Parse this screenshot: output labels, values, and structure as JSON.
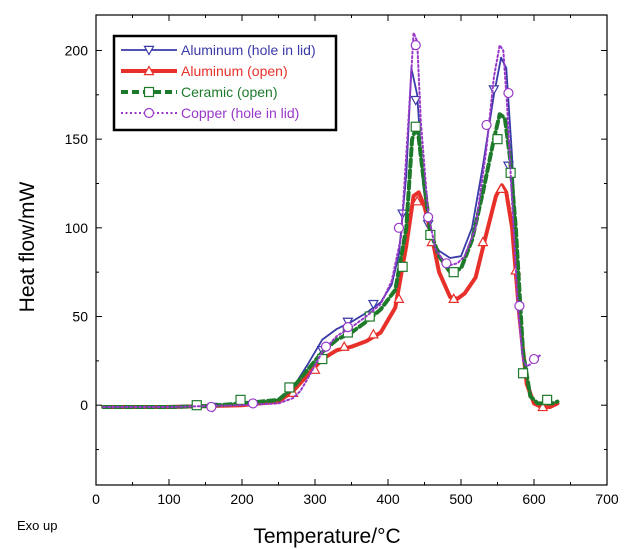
{
  "chart_data": {
    "type": "line",
    "title": "",
    "xlabel": "Temperature/°C",
    "ylabel": "Heat flow/mW",
    "corner_note": "Exo up",
    "xlim": [
      0,
      700
    ],
    "ylim": [
      -45,
      220
    ],
    "xticks": [
      0,
      100,
      200,
      300,
      400,
      500,
      600,
      700
    ],
    "yticks": [
      0,
      50,
      100,
      150,
      200
    ],
    "grid": false,
    "legend_position": "top-left",
    "series": [
      {
        "name": "Aluminum (hole in lid)",
        "color": "#3a3aa8",
        "marker": "triangle-down",
        "dash": "solid",
        "width": 1.8,
        "x": [
          10,
          100,
          150,
          200,
          250,
          270,
          290,
          310,
          330,
          350,
          370,
          390,
          405,
          415,
          425,
          432,
          440,
          448,
          458,
          470,
          485,
          500,
          515,
          530,
          545,
          555,
          562,
          570,
          580,
          590,
          600,
          610,
          622,
          632
        ],
        "y": [
          -1,
          -1,
          -0.5,
          0,
          3,
          10,
          23,
          37,
          43,
          47,
          52,
          58,
          68,
          85,
          130,
          190,
          175,
          125,
          95,
          87,
          83,
          84,
          100,
          135,
          175,
          196,
          190,
          140,
          55,
          15,
          2,
          -1,
          -1,
          1
        ],
        "marker_x": [
          160,
          310,
          345,
          380,
          420,
          438,
          455,
          545,
          565
        ],
        "marker_y": [
          -1,
          31,
          47,
          57,
          108,
          172,
          102,
          178,
          135
        ]
      },
      {
        "name": "Aluminum (open)",
        "color": "#e8302a",
        "marker": "triangle-up",
        "dash": "solid",
        "width": 4,
        "x": [
          10,
          100,
          150,
          200,
          250,
          270,
          290,
          310,
          330,
          350,
          370,
          390,
          410,
          425,
          435,
          442,
          450,
          460,
          470,
          485,
          495,
          505,
          520,
          535,
          548,
          556,
          562,
          570,
          580,
          590,
          600,
          610,
          622,
          632
        ],
        "y": [
          -1,
          -1,
          -0.5,
          0,
          2,
          8,
          17,
          26,
          31,
          33,
          36,
          41,
          55,
          90,
          118,
          120,
          112,
          95,
          75,
          61,
          60,
          63,
          72,
          97,
          118,
          124,
          120,
          100,
          50,
          12,
          1,
          -1,
          -1,
          1
        ],
        "marker_x": [
          270,
          300,
          340,
          380,
          415,
          440,
          460,
          490,
          530,
          555,
          575,
          612
        ],
        "marker_y": [
          7,
          20,
          33,
          40,
          60,
          115,
          92,
          60,
          92,
          122,
          76,
          -1
        ],
        "marker_fill": "#ffffff"
      },
      {
        "name": "Ceramic (open)",
        "color": "#1e7a2b",
        "marker": "square",
        "dash": "dashed",
        "width": 4,
        "x": [
          10,
          100,
          150,
          200,
          250,
          270,
          290,
          310,
          330,
          350,
          370,
          390,
          410,
          425,
          433,
          440,
          448,
          458,
          470,
          485,
          500,
          515,
          530,
          545,
          553,
          560,
          567,
          575,
          585,
          595,
          605,
          615,
          625,
          632
        ],
        "y": [
          -1,
          -1,
          -0.5,
          1,
          3,
          10,
          20,
          30,
          37,
          41,
          47,
          54,
          65,
          100,
          150,
          158,
          130,
          98,
          84,
          75,
          77,
          93,
          120,
          150,
          164,
          162,
          140,
          100,
          30,
          5,
          1,
          1,
          1,
          2
        ],
        "marker_x": [
          138,
          198,
          265,
          310,
          345,
          375,
          420,
          438,
          458,
          490,
          550,
          568,
          585,
          618
        ],
        "marker_y": [
          0,
          3,
          10,
          26,
          41,
          50,
          78,
          157,
          96,
          75,
          150,
          131,
          18,
          3
        ]
      },
      {
        "name": "Copper (hole in lid)",
        "color": "#9838c8",
        "marker": "circle",
        "dash": "dotted",
        "width": 2,
        "x": [
          10,
          100,
          150,
          200,
          250,
          270,
          280,
          290,
          310,
          330,
          350,
          370,
          390,
          405,
          418,
          428,
          435,
          440,
          445,
          455,
          465,
          475,
          485,
          495,
          505,
          520,
          535,
          545,
          553,
          558,
          563,
          570,
          578,
          585,
          590,
          595,
          602,
          608
        ],
        "y": [
          -1,
          -1,
          -0.5,
          0,
          1,
          4,
          8,
          15,
          30,
          39,
          44,
          50,
          57,
          70,
          95,
          160,
          210,
          205,
          160,
          108,
          88,
          82,
          79,
          80,
          84,
          100,
          145,
          185,
          203,
          200,
          170,
          115,
          55,
          25,
          22,
          23,
          26,
          28
        ],
        "marker_x": [
          158,
          215,
          315,
          345,
          415,
          438,
          455,
          480,
          535,
          565,
          580,
          600
        ],
        "marker_y": [
          -1,
          1,
          33,
          44,
          100,
          203,
          106,
          80,
          158,
          176,
          56,
          26
        ],
        "marker_fill": "#ffffff"
      }
    ]
  }
}
